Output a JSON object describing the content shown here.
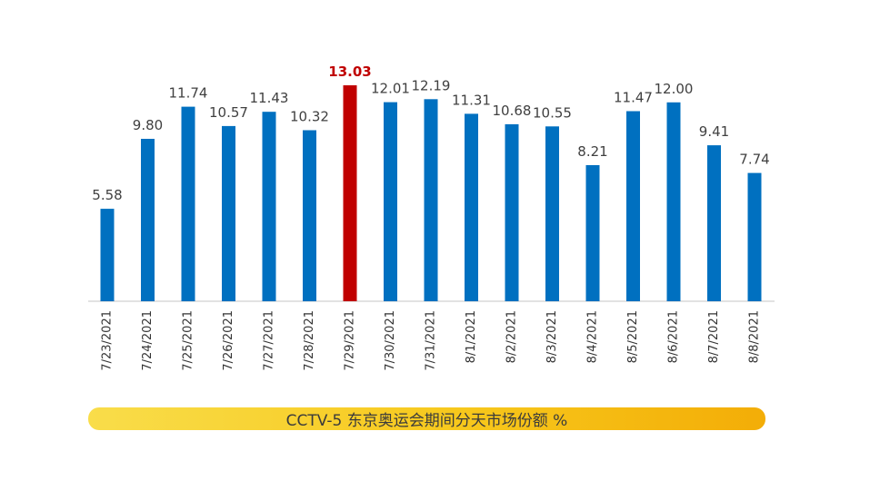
{
  "chart_data": {
    "type": "bar",
    "categories": [
      "7/23/2021",
      "7/24/2021",
      "7/25/2021",
      "7/26/2021",
      "7/27/2021",
      "7/28/2021",
      "7/29/2021",
      "7/30/2021",
      "7/31/2021",
      "8/1/2021",
      "8/2/2021",
      "8/3/2021",
      "8/4/2021",
      "8/5/2021",
      "8/6/2021",
      "8/7/2021",
      "8/8/2021"
    ],
    "values": [
      5.58,
      9.8,
      11.74,
      10.57,
      11.43,
      10.32,
      13.03,
      12.01,
      12.19,
      11.31,
      10.68,
      10.55,
      8.21,
      11.47,
      12.0,
      9.41,
      7.74
    ],
    "value_labels": [
      "5.58",
      "9.80",
      "11.74",
      "10.57",
      "11.43",
      "10.32",
      "13.03",
      "12.01",
      "12.19",
      "11.31",
      "10.68",
      "10.55",
      "8.21",
      "11.47",
      "12.00",
      "9.41",
      "7.74"
    ],
    "highlight_index": 6,
    "colors": {
      "bar": "#0070c0",
      "highlight": "#c00000",
      "axis": "#d9d9d9"
    },
    "ylim": [
      0,
      13.03
    ],
    "grid": false,
    "legend": "none"
  },
  "caption": "CCTV-5 东京奥运会期间分天市场份额 %"
}
